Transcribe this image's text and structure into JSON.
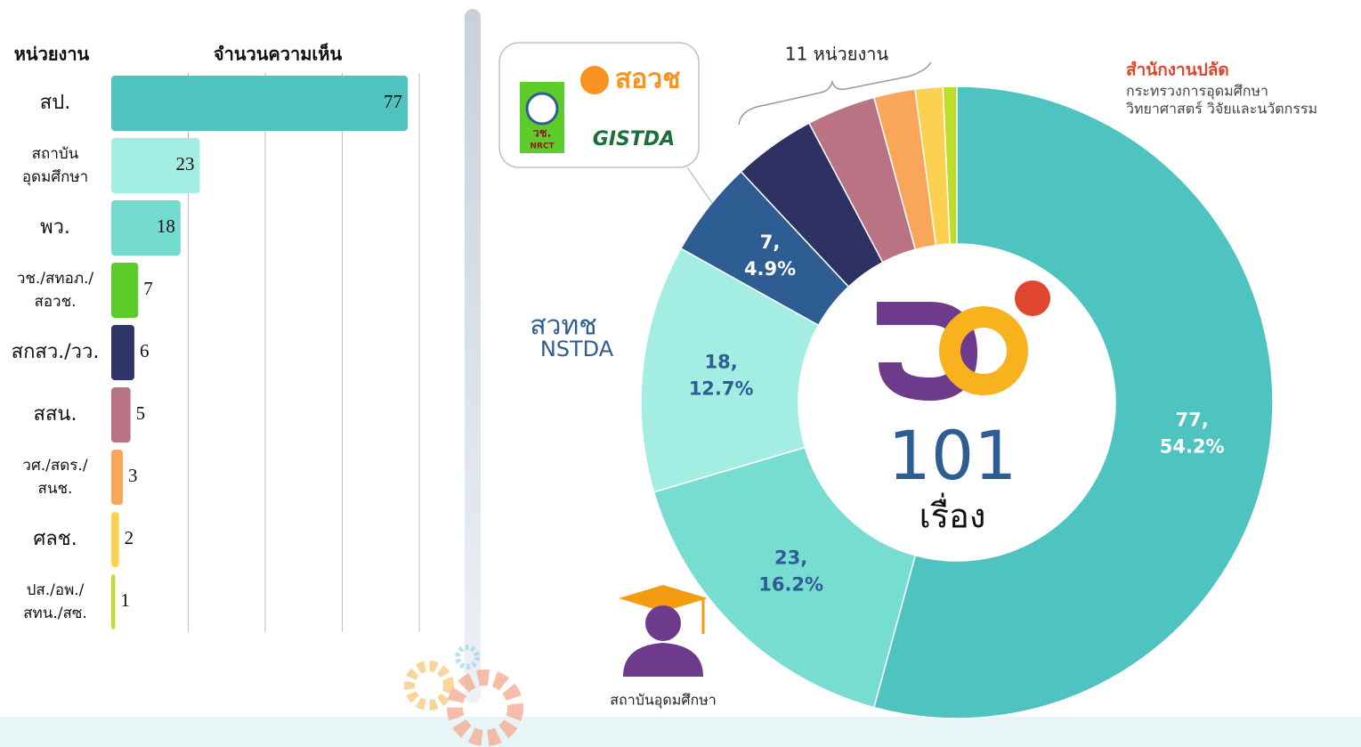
{
  "chart_data": [
    {
      "type": "barh",
      "headers": [
        "หน่วยงาน",
        "จำนวนความเห็น"
      ],
      "categories": [
        "สป.",
        "สถาบัน\nอุดมศึกษา",
        "พว.",
        "วช./สทอภ./\nสอวช.",
        "สกสว./วว.",
        "สสน.",
        "วศ./สดร./\nสนช.",
        "ศลช.",
        "ปส./อพ./\nสทน./สซ."
      ],
      "values": [
        77,
        23,
        18,
        7,
        6,
        5,
        3,
        2,
        1
      ],
      "colors": [
        "#4fc3c0",
        "#a3ede3",
        "#74dccf",
        "#5ccc2a",
        "#2f3468",
        "#b97384",
        "#f9a65a",
        "#fcd150",
        "#bedd2a"
      ],
      "xlim": [
        0,
        80
      ],
      "xticks": [
        20,
        40,
        60,
        80
      ],
      "grid": true
    },
    {
      "type": "donut",
      "categories": [
        "สป.",
        "สถาบันอุดมศึกษา",
        "พว.",
        "วช./สทอภ./สอวช.",
        "สกสว./วว.",
        "สสน.",
        "วศ./สดร./สนช.",
        "ศลช.",
        "ปส./อพ./สทน./สซ."
      ],
      "values": [
        77,
        23,
        18,
        7,
        6,
        5,
        3,
        2,
        1
      ],
      "value_labels": [
        "77,\n54.2%",
        "23,\n16.2%",
        "18,\n12.7%",
        "7,\n4.9%",
        null,
        null,
        null,
        null,
        null
      ],
      "colors": [
        "#4fc3c0",
        "#77ddd1",
        "#a3ede3",
        "#2e5d93",
        "#2d3263",
        "#b97384",
        "#f9a65a",
        "#fcd150",
        "#bedd2a"
      ],
      "center_value": "101",
      "center_unit": "เรื่อง",
      "annotations": {
        "group": "11 หน่วยงาน",
        "ops_title": "สำนักงานปลัด",
        "ops_line1": "กระทรวงการอุดมศึกษา",
        "ops_line2": "วิทยาศาสตร์ วิจัยและนวัตกรรม",
        "university": "สถาบันอุดมศึกษา",
        "nstda_th": "สวทช",
        "nstda_en": "NSTDA",
        "sorwor": "สอวช",
        "gistda": "GISTDA",
        "nrct_th": "วช.",
        "nrct_en": "NRCT"
      }
    }
  ]
}
